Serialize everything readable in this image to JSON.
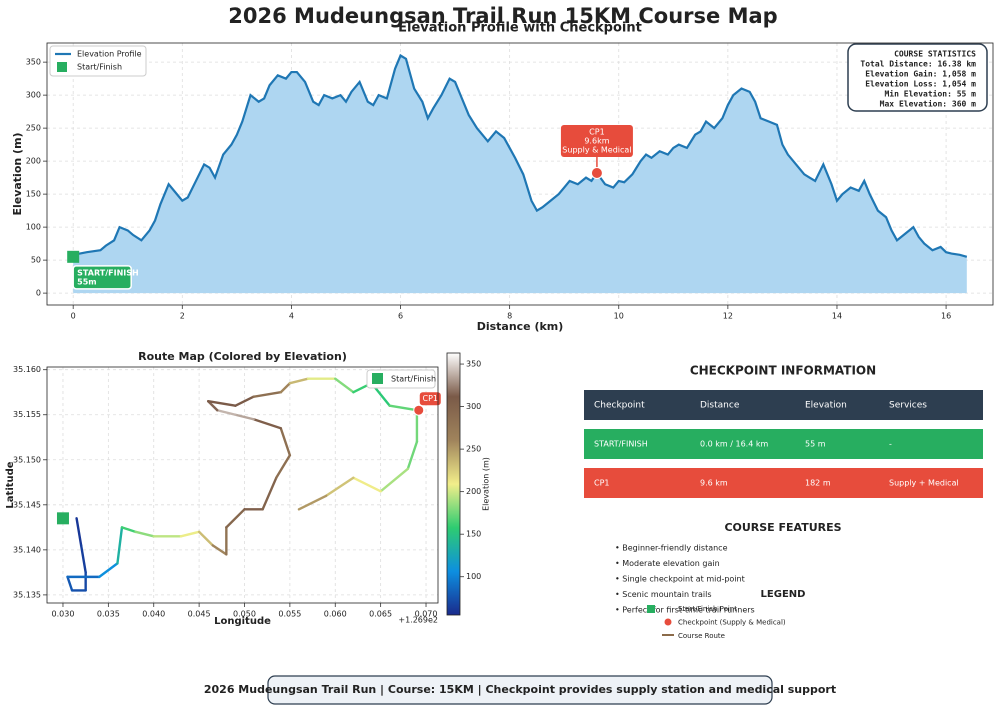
{
  "title": "2026 Mudeungsan Trail Run 15KM Course Map",
  "chart_data": [
    {
      "type": "area-line",
      "title": "Elevation Profile with Checkpoint",
      "xlabel": "Distance (km)",
      "ylabel": "Elevation (m)",
      "x": [
        0,
        0.25,
        0.5,
        0.6,
        0.75,
        0.85,
        1.0,
        1.1,
        1.25,
        1.4,
        1.5,
        1.6,
        1.75,
        1.9,
        2.0,
        2.1,
        2.25,
        2.4,
        2.5,
        2.6,
        2.75,
        2.9,
        3.0,
        3.1,
        3.25,
        3.4,
        3.5,
        3.6,
        3.75,
        3.9,
        4.0,
        4.1,
        4.25,
        4.4,
        4.5,
        4.6,
        4.75,
        4.9,
        5.0,
        5.1,
        5.25,
        5.4,
        5.5,
        5.6,
        5.75,
        5.9,
        6.0,
        6.1,
        6.25,
        6.4,
        6.5,
        6.6,
        6.75,
        6.9,
        7.0,
        7.1,
        7.25,
        7.4,
        7.5,
        7.6,
        7.75,
        7.9,
        8.0,
        8.1,
        8.25,
        8.4,
        8.5,
        8.6,
        8.75,
        8.9,
        9.0,
        9.1,
        9.25,
        9.4,
        9.5,
        9.6,
        9.75,
        9.9,
        10.0,
        10.1,
        10.25,
        10.4,
        10.5,
        10.6,
        10.75,
        10.9,
        11.0,
        11.1,
        11.25,
        11.4,
        11.5,
        11.6,
        11.75,
        11.9,
        12.0,
        12.1,
        12.25,
        12.4,
        12.5,
        12.6,
        12.75,
        12.9,
        13.0,
        13.1,
        13.25,
        13.4,
        13.5,
        13.6,
        13.75,
        13.9,
        14.0,
        14.1,
        14.25,
        14.4,
        14.5,
        14.6,
        14.75,
        14.9,
        15.0,
        15.1,
        15.25,
        15.4,
        15.5,
        15.6,
        15.75,
        15.9,
        16.0,
        16.1,
        16.25,
        16.38
      ],
      "series": [
        {
          "name": "Elevation Profile",
          "color": "#1f77b4",
          "fill": "#aed6f1",
          "values": [
            58,
            62,
            65,
            72,
            80,
            100,
            95,
            88,
            80,
            95,
            110,
            135,
            165,
            150,
            140,
            145,
            170,
            195,
            190,
            175,
            210,
            225,
            240,
            260,
            300,
            290,
            295,
            315,
            330,
            325,
            335,
            335,
            320,
            290,
            285,
            300,
            295,
            300,
            290,
            305,
            320,
            290,
            285,
            300,
            295,
            340,
            360,
            355,
            310,
            290,
            265,
            280,
            300,
            325,
            320,
            300,
            270,
            250,
            240,
            230,
            245,
            235,
            220,
            205,
            180,
            140,
            125,
            130,
            140,
            150,
            160,
            170,
            165,
            175,
            170,
            182,
            165,
            160,
            170,
            168,
            180,
            200,
            210,
            205,
            215,
            210,
            220,
            225,
            220,
            240,
            245,
            260,
            250,
            265,
            285,
            300,
            310,
            305,
            290,
            265,
            260,
            255,
            225,
            210,
            195,
            180,
            175,
            170,
            195,
            165,
            140,
            150,
            160,
            155,
            170,
            150,
            125,
            115,
            95,
            80,
            90,
            100,
            85,
            75,
            65,
            70,
            62,
            60,
            58,
            55
          ]
        }
      ],
      "xlim": [
        -0.48,
        16.86
      ],
      "ylim": [
        -18,
        379
      ],
      "xticks": [
        0,
        2,
        4,
        6,
        8,
        10,
        12,
        14,
        16
      ],
      "yticks": [
        0,
        50,
        100,
        150,
        200,
        250,
        300,
        350
      ],
      "grid": true,
      "legend": "upper left",
      "start": {
        "name": "Start/Finish",
        "x": 0,
        "y": 55,
        "color": "#27ae60",
        "label": [
          "START/FINISH",
          "55m"
        ]
      },
      "checkpoint": {
        "x": 9.6,
        "y": 182,
        "color": "#e74c3c",
        "label": [
          "CP1",
          "9.6km",
          "Supply & Medical"
        ]
      },
      "stats": {
        "title": "COURSE STATISTICS",
        "lines": [
          "Total Distance: 16.38 km",
          "Elevation Gain: 1,058 m",
          "Elevation Loss: 1,054 m",
          "Min Elevation: 55 m",
          "Max Elevation: 360 m"
        ]
      }
    },
    {
      "type": "route",
      "title": "Route Map (Colored by Elevation)",
      "xlabel": "Longitude",
      "ylabel": "Latitude",
      "x_offset": "+1.269e2",
      "x": [
        0.0315,
        0.032,
        0.0325,
        0.0325,
        0.031,
        0.0305,
        0.034,
        0.036,
        0.0365,
        0.038,
        0.04,
        0.043,
        0.045,
        0.0465,
        0.048,
        0.048,
        0.05,
        0.052,
        0.0535,
        0.055,
        0.054,
        0.051,
        0.049,
        0.047,
        0.046,
        0.049,
        0.051,
        0.054,
        0.055,
        0.057,
        0.06,
        0.062,
        0.064,
        0.066,
        0.069,
        0.069,
        0.068,
        0.065,
        0.062,
        0.059,
        0.056
      ],
      "y": [
        35.1435,
        35.1405,
        35.1375,
        35.1355,
        35.1355,
        35.137,
        35.137,
        35.1385,
        35.1425,
        35.142,
        35.1415,
        35.1415,
        35.142,
        35.1405,
        35.1395,
        35.1425,
        35.1445,
        35.1445,
        35.148,
        35.1505,
        35.1535,
        35.1545,
        35.155,
        35.1555,
        35.1565,
        35.156,
        35.157,
        35.1575,
        35.1585,
        35.159,
        35.159,
        35.1575,
        35.1585,
        35.156,
        35.1555,
        35.152,
        35.149,
        35.1465,
        35.148,
        35.146,
        35.1445
      ],
      "elevation": [
        60,
        63,
        68,
        72,
        76,
        80,
        95,
        120,
        150,
        175,
        190,
        200,
        215,
        250,
        270,
        290,
        300,
        310,
        290,
        280,
        290,
        320,
        350,
        330,
        300,
        320,
        300,
        270,
        250,
        220,
        190,
        170,
        150,
        160,
        182,
        170,
        180,
        200,
        220,
        240,
        260
      ],
      "xlim": [
        0.02824,
        0.07132
      ],
      "ylim": [
        35.1341,
        35.1603
      ],
      "xticks": [
        {
          "value": 0.03,
          "label": "0.030"
        },
        0.035,
        {
          "value": 0.04,
          "label": "0.040"
        },
        0.045,
        {
          "value": 0.05,
          "label": "0.050"
        },
        0.055,
        {
          "value": 0.06,
          "label": "0.060"
        },
        0.065,
        {
          "value": 0.07,
          "label": "0.070"
        }
      ],
      "yticks": [
        35.135,
        {
          "value": 35.14,
          "label": "35.140"
        },
        35.145,
        {
          "value": 35.15,
          "label": "35.150"
        },
        35.155,
        {
          "value": 35.16,
          "label": "35.160"
        }
      ],
      "grid": true,
      "legend": "upper right",
      "start": {
        "name": "Start/Finish",
        "x": 0.03,
        "y": 35.1435,
        "color": "#27ae60"
      },
      "checkpoint": {
        "x": 0.0692,
        "y": 35.1555,
        "color": "#e74c3c",
        "label": "CP1"
      },
      "colorbar": {
        "label": "Elevation (m)",
        "lim": [
          55,
          363
        ],
        "ticks": [
          100,
          150,
          200,
          250,
          300,
          350
        ],
        "colormap": [
          "#1a2a8c",
          "#0d8fe0",
          "#2ecc71",
          "#f2ee8a",
          "#a0845c",
          "#7a5a48",
          "#ffffff"
        ]
      }
    }
  ],
  "checkpoint_info": {
    "title": "CHECKPOINT INFORMATION",
    "header": [
      "Checkpoint",
      "Distance",
      "Elevation",
      "Services"
    ],
    "rows": [
      [
        "START/FINISH",
        "0.0 km / 16.4 km",
        "55 m",
        "-"
      ],
      [
        "CP1",
        "9.6 km",
        "182 m",
        "Supply + Medical"
      ]
    ]
  },
  "course_features": {
    "title": "COURSE FEATURES",
    "items": [
      "• Beginner-friendly distance",
      "• Moderate elevation gain",
      "• Single checkpoint at mid-point",
      "• Scenic mountain trails",
      "• Perfect for first-time trail runners"
    ]
  },
  "legend": {
    "title": "LEGEND",
    "items": [
      "Start/Finish Point",
      "Checkpoint (Supply & Medical)",
      "Course Route"
    ]
  },
  "footer": "2026 Mudeungsan Trail Run | Course: 15KM | Checkpoint provides supply station and medical support"
}
